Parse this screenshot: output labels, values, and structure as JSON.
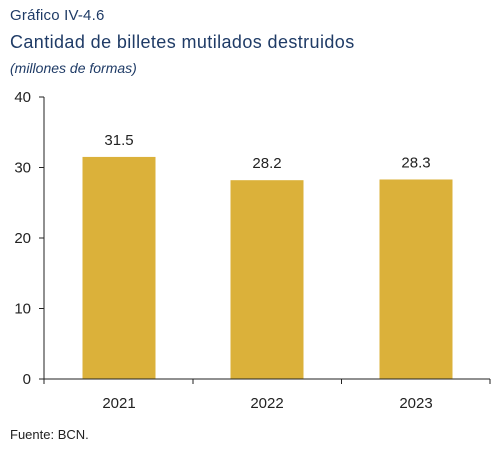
{
  "figure": {
    "label": "Gráfico IV-4.6",
    "title": "Cantidad de billetes mutilados destruidos",
    "subtitle": "(millones de formas)",
    "source": "Fuente: BCN."
  },
  "colors": {
    "bar": "#dbb13a",
    "heading": "#1f3b66",
    "axis": "#222222"
  },
  "chart_data": {
    "type": "bar",
    "categories": [
      "2021",
      "2022",
      "2023"
    ],
    "values": [
      31.5,
      28.2,
      28.3
    ],
    "value_labels": [
      "31.5",
      "28.2",
      "28.3"
    ],
    "title": "Cantidad de billetes mutilados destruidos",
    "subtitle": "(millones de formas)",
    "xlabel": "",
    "ylabel": "",
    "ylim": [
      0,
      40
    ],
    "yticks": [
      0,
      10,
      20,
      30,
      40
    ],
    "grid": false,
    "legend": "none"
  }
}
